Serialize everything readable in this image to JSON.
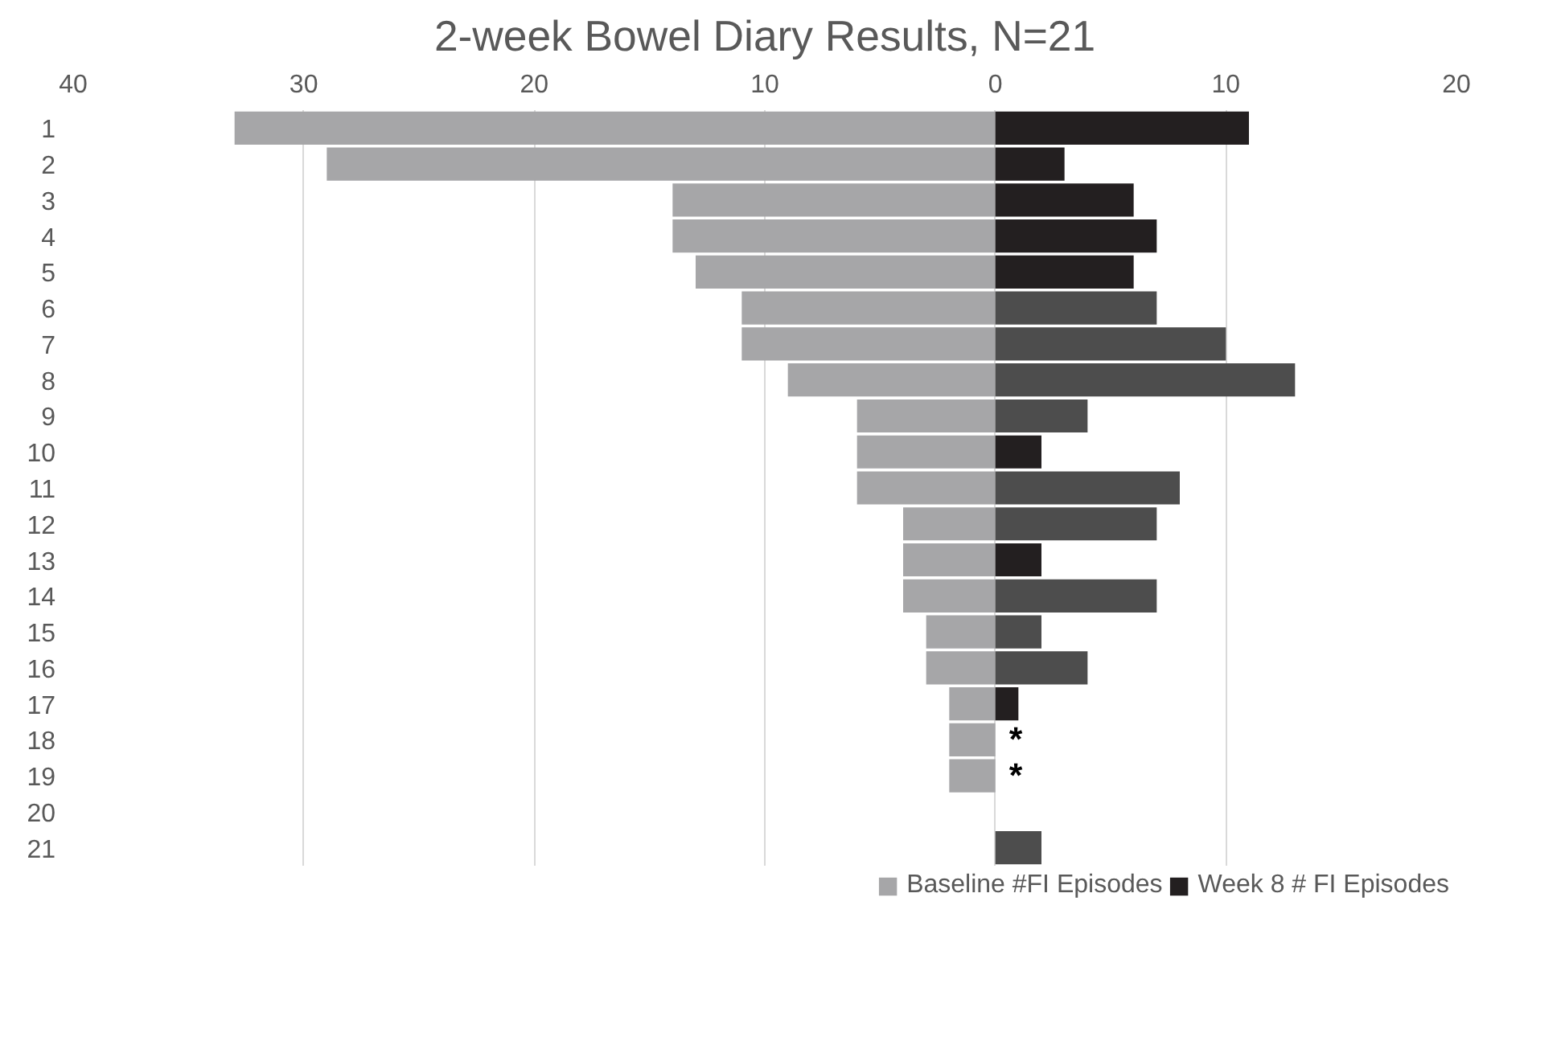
{
  "chart_data": {
    "type": "bar",
    "orientation": "horizontal",
    "stacked": true,
    "title": "2-week Bowel Diary Results, N=21",
    "categories": [
      "1",
      "2",
      "3",
      "4",
      "5",
      "6",
      "7",
      "8",
      "9",
      "10",
      "11",
      "12",
      "13",
      "14",
      "15",
      "16",
      "17",
      "18",
      "19",
      "20",
      "21"
    ],
    "series": [
      {
        "name": "Baseline #FI Episodes",
        "color": "#a6a6a8",
        "values": [
          -33,
          -29,
          -14,
          -14,
          -13,
          -11,
          -11,
          -9,
          -6,
          -6,
          -6,
          -4,
          -4,
          -4,
          -3,
          -3,
          -2,
          -2,
          -2,
          0,
          0
        ]
      },
      {
        "name": "Week 8 # FI Episodes",
        "color": "#231f20",
        "colors": [
          "#231f20",
          "#231f20",
          "#231f20",
          "#231f20",
          "#231f20",
          "#4d4d4d",
          "#4d4d4d",
          "#4d4d4d",
          "#4d4d4d",
          "#231f20",
          "#4d4d4d",
          "#4d4d4d",
          "#231f20",
          "#4d4d4d",
          "#4d4d4d",
          "#4d4d4d",
          "#231f20",
          "#231f20",
          "#231f20",
          "#231f20",
          "#4d4d4d"
        ],
        "values": [
          11,
          3,
          6,
          7,
          6,
          7,
          10,
          13,
          4,
          2,
          8,
          7,
          2,
          7,
          2,
          4,
          1,
          null,
          null,
          null,
          2
        ]
      }
    ],
    "xlim": [
      -40,
      20
    ],
    "xticks": [
      {
        "value": -40,
        "label": "40"
      },
      {
        "value": -30,
        "label": "30"
      },
      {
        "value": -20,
        "label": "20"
      },
      {
        "value": -10,
        "label": "10"
      },
      0,
      10,
      20
    ],
    "grid": "x",
    "legend": "bottom",
    "annotations": [
      "*",
      "*"
    ]
  }
}
